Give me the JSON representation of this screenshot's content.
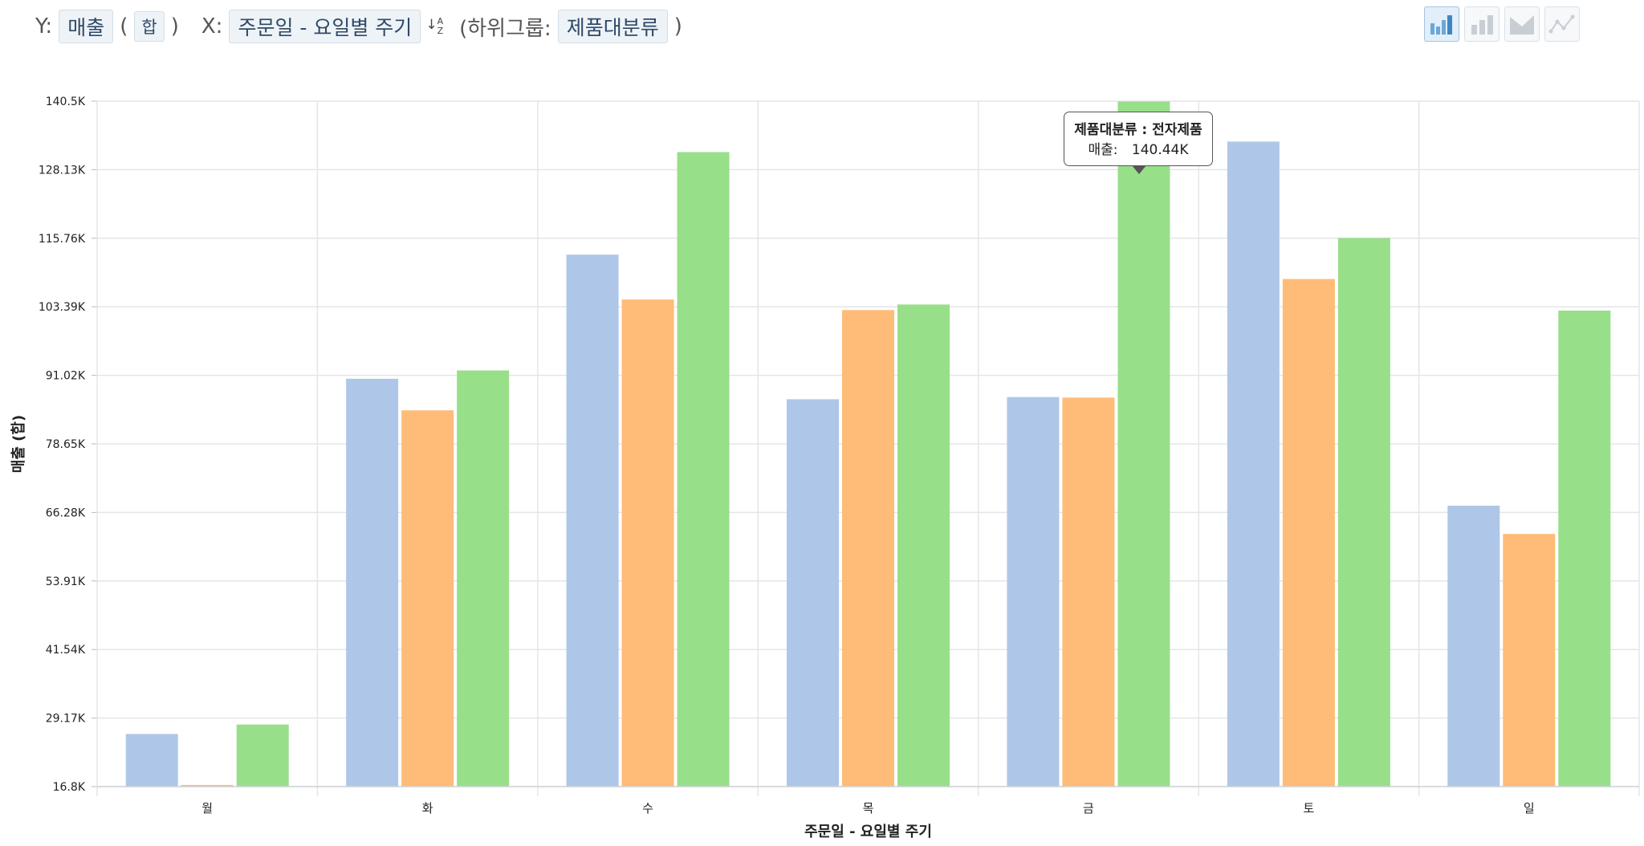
{
  "toolbar": {
    "y_label": "Y:",
    "y_field": "매출",
    "aggregate": "합",
    "x_label": "X:",
    "x_field": "주문일 - 요일별 주기",
    "sort_icon": "sort-alpha-icon",
    "subgroup_label": "(하위그룹:",
    "subgroup_field": "제품대분류",
    "subgroup_close": ")",
    "paren_open": "(",
    "paren_close": ")"
  },
  "chart_types": [
    {
      "name": "chart-type-grouped-bar",
      "icon": "grouped-bar-icon",
      "active": true
    },
    {
      "name": "chart-type-stacked-bar",
      "icon": "stacked-bar-icon",
      "active": false
    },
    {
      "name": "chart-type-area",
      "icon": "area-icon",
      "active": false
    },
    {
      "name": "chart-type-line",
      "icon": "line-icon",
      "active": false
    }
  ],
  "tooltip": {
    "title": "제품대분류 : 전자제품",
    "label": "매출:",
    "value": "140.44K"
  },
  "chart_data": {
    "type": "bar",
    "xlabel": "주문일 - 요일별 주기",
    "ylabel": "매출 (합)",
    "categories": [
      "월",
      "화",
      "수",
      "목",
      "금",
      "토",
      "일"
    ],
    "ylim": [
      16800,
      140500
    ],
    "yticks": [
      16800,
      29170,
      41540,
      53910,
      66280,
      78650,
      91020,
      103390,
      115760,
      128130,
      140500
    ],
    "ytick_labels": [
      "16.8K",
      "29.17K",
      "41.54K",
      "53.91K",
      "66.28K",
      "78.65K",
      "91.02K",
      "103.39K",
      "115.76K",
      "128.13K",
      "140.5K"
    ],
    "grid": true,
    "legend": "none",
    "series": [
      {
        "color": "#aec7e8",
        "values": [
          26300,
          90400,
          112800,
          86700,
          87100,
          133200,
          67500
        ]
      },
      {
        "color": "#ffbb78",
        "values": [
          17100,
          84700,
          104700,
          102800,
          87000,
          108400,
          62400
        ]
      },
      {
        "color": "#98df8a",
        "values": [
          28000,
          91900,
          131300,
          103800,
          140440,
          115800,
          102700
        ]
      }
    ]
  }
}
